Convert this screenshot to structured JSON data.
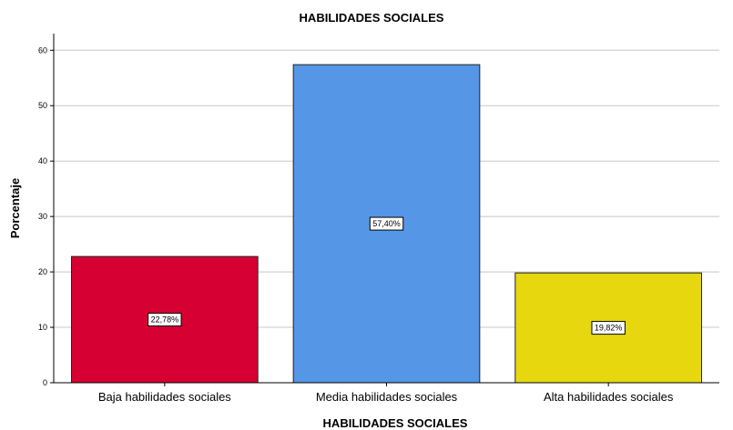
{
  "chart_data": {
    "type": "bar",
    "title": "HABILIDADES SOCIALES",
    "xlabel": "HABILIDADES SOCIALES",
    "ylabel": "Porcentaje",
    "categories": [
      "Baja habilidades sociales",
      "Media habilidades sociales",
      "Alta habilidades sociales"
    ],
    "values": [
      22.78,
      57.4,
      19.82
    ],
    "value_labels": [
      "22,78%",
      "57,40%",
      "19,82%"
    ],
    "colors": [
      "#d60032",
      "#5596e6",
      "#e6d70f"
    ],
    "ylim": [
      0,
      63
    ],
    "yticks": [
      0,
      10,
      20,
      30,
      40,
      50,
      60
    ],
    "grid": true,
    "legend": "none"
  }
}
